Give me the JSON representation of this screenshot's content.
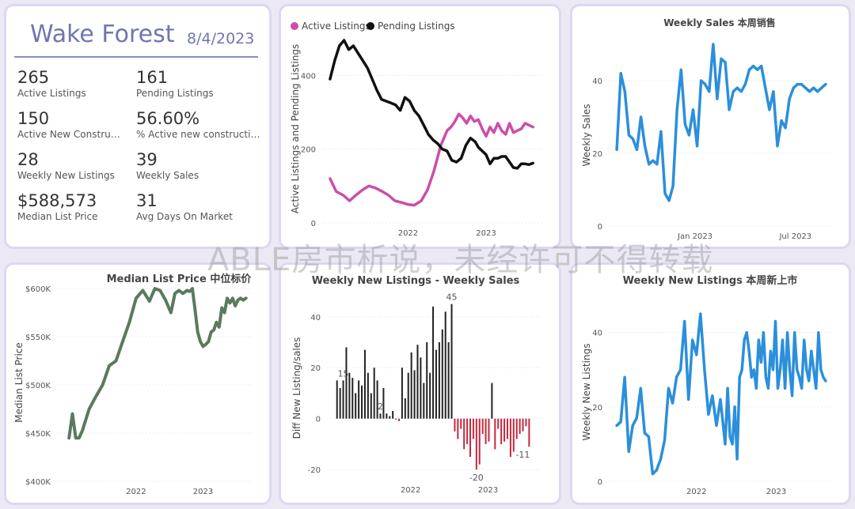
{
  "summary": {
    "title": "Wake Forest",
    "date": "8/4/2023",
    "kpis": [
      {
        "value": "265",
        "label": "Active Listings"
      },
      {
        "value": "161",
        "label": "Pending Listings"
      },
      {
        "value": "150",
        "label": "Active New Constructi..."
      },
      {
        "value": "56.60%",
        "label": "% Active new constructions"
      },
      {
        "value": "28",
        "label": "Weekly New Listings"
      },
      {
        "value": "39",
        "label": "Weekly Sales"
      },
      {
        "value": "$588,573",
        "label": "Median List Price"
      },
      {
        "value": "31",
        "label": "Avg Days On Market"
      }
    ]
  },
  "watermark": "ABLE房市析说，未经许可不得转载",
  "colors": {
    "active": "#cc4ea8",
    "pending": "#111111",
    "sales": "#2b8fdb",
    "price": "#5a7a5c",
    "pos": "#222222",
    "neg": "#c8283e"
  },
  "chart_data": [
    {
      "type": "line",
      "title": "",
      "ylabel": "Active Listings and Pending Listings",
      "ylim": [
        0,
        510
      ],
      "yticks": [
        "0",
        "200",
        "400"
      ],
      "xticks": [
        {
          "t": 2022.0,
          "label": "2022"
        },
        {
          "t": 2023.0,
          "label": "2023"
        }
      ],
      "legend": "top-left",
      "series": [
        {
          "name": "Active Listings",
          "color": "#cc4ea8",
          "x": [
            2021.0,
            2021.08,
            2021.17,
            2021.25,
            2021.33,
            2021.42,
            2021.5,
            2021.58,
            2021.67,
            2021.75,
            2021.83,
            2021.92,
            2022.0,
            2022.08,
            2022.17,
            2022.25,
            2022.33,
            2022.42,
            2022.5,
            2022.55,
            2022.6,
            2022.65,
            2022.7,
            2022.75,
            2022.8,
            2022.85,
            2022.9,
            2022.95,
            2023.0,
            2023.05,
            2023.1,
            2023.15,
            2023.2,
            2023.25,
            2023.3,
            2023.35,
            2023.4,
            2023.45,
            2023.5,
            2023.55,
            2023.6
          ],
          "y": [
            120,
            85,
            75,
            60,
            75,
            90,
            100,
            95,
            85,
            75,
            60,
            55,
            50,
            48,
            60,
            90,
            140,
            210,
            250,
            260,
            275,
            295,
            285,
            270,
            290,
            275,
            280,
            255,
            235,
            260,
            245,
            270,
            250,
            240,
            270,
            245,
            250,
            255,
            270,
            265,
            260
          ]
        },
        {
          "name": "Pending Listings",
          "color": "#111111",
          "x": [
            2021.0,
            2021.06,
            2021.12,
            2021.18,
            2021.24,
            2021.3,
            2021.36,
            2021.42,
            2021.48,
            2021.54,
            2021.6,
            2021.66,
            2021.72,
            2021.78,
            2021.84,
            2021.9,
            2021.96,
            2022.02,
            2022.08,
            2022.14,
            2022.2,
            2022.26,
            2022.32,
            2022.38,
            2022.44,
            2022.5,
            2022.56,
            2022.62,
            2022.68,
            2022.74,
            2022.8,
            2022.86,
            2022.9,
            2022.95,
            2023.0,
            2023.05,
            2023.1,
            2023.15,
            2023.2,
            2023.25,
            2023.3,
            2023.35,
            2023.4,
            2023.45,
            2023.5,
            2023.55,
            2023.6
          ],
          "y": [
            390,
            440,
            480,
            495,
            470,
            480,
            460,
            440,
            420,
            390,
            360,
            335,
            330,
            325,
            320,
            305,
            340,
            330,
            305,
            290,
            265,
            240,
            225,
            215,
            200,
            195,
            170,
            165,
            175,
            210,
            230,
            220,
            205,
            195,
            185,
            160,
            175,
            175,
            180,
            180,
            165,
            150,
            148,
            160,
            160,
            158,
            162
          ]
        }
      ]
    },
    {
      "type": "line",
      "title": "Weekly Sales 本周销售",
      "ylabel": "Weekly Sales",
      "ylim": [
        0,
        50
      ],
      "yticks": [
        "0",
        "20",
        "40"
      ],
      "xticks": [
        {
          "t": 2023.0,
          "label": "Jan 2023"
        },
        {
          "t": 2023.5,
          "label": "Jul 2023"
        }
      ],
      "series": [
        {
          "name": "Weekly Sales",
          "color": "#2b8fdb",
          "x": [
            2022.61,
            2022.63,
            2022.65,
            2022.67,
            2022.69,
            2022.71,
            2022.73,
            2022.75,
            2022.77,
            2022.79,
            2022.81,
            2022.83,
            2022.85,
            2022.87,
            2022.89,
            2022.91,
            2022.93,
            2022.95,
            2022.97,
            2022.99,
            2023.01,
            2023.03,
            2023.05,
            2023.07,
            2023.09,
            2023.11,
            2023.13,
            2023.15,
            2023.17,
            2023.19,
            2023.21,
            2023.23,
            2023.25,
            2023.27,
            2023.29,
            2023.31,
            2023.33,
            2023.35,
            2023.37,
            2023.39,
            2023.41,
            2023.43,
            2023.45,
            2023.47,
            2023.49,
            2023.51,
            2023.53,
            2023.55,
            2023.57,
            2023.59,
            2023.61,
            2023.63,
            2023.65
          ],
          "y": [
            21,
            42,
            37,
            25,
            24,
            21,
            30,
            22,
            17,
            18,
            17,
            26,
            9,
            7,
            11,
            32,
            43,
            28,
            25,
            32,
            22,
            40,
            39,
            37,
            50,
            35,
            46,
            45,
            32,
            37,
            38,
            37,
            39,
            43,
            44,
            43,
            44,
            38,
            32,
            37,
            22,
            29,
            27,
            35,
            38,
            39,
            39,
            38,
            37,
            38,
            37,
            38,
            39
          ]
        }
      ]
    },
    {
      "type": "line",
      "title": "Median List Price  中位标价",
      "ylabel": "Median List Price",
      "ylim": [
        400000,
        605000
      ],
      "yticks": [
        "$400K",
        "$450K",
        "$500K",
        "$550K",
        "$600K"
      ],
      "xticks": [
        {
          "t": 2022.0,
          "label": "2022"
        },
        {
          "t": 2023.0,
          "label": "2023"
        }
      ],
      "series": [
        {
          "name": "Median List Price",
          "color": "#5a7a5c",
          "x": [
            2021.0,
            2021.05,
            2021.1,
            2021.15,
            2021.2,
            2021.3,
            2021.4,
            2021.5,
            2021.6,
            2021.7,
            2021.8,
            2021.9,
            2022.0,
            2022.1,
            2022.2,
            2022.28,
            2022.36,
            2022.44,
            2022.52,
            2022.58,
            2022.64,
            2022.7,
            2022.76,
            2022.8,
            2022.84,
            2022.88,
            2022.92,
            2022.96,
            2023.0,
            2023.04,
            2023.08,
            2023.12,
            2023.16,
            2023.2,
            2023.24,
            2023.28,
            2023.32,
            2023.36,
            2023.4,
            2023.44,
            2023.48,
            2023.52,
            2023.56,
            2023.6,
            2023.64
          ],
          "y": [
            445000,
            470000,
            445000,
            445000,
            453000,
            475000,
            488000,
            500000,
            520000,
            525000,
            545000,
            565000,
            590000,
            598000,
            587000,
            600000,
            598000,
            588000,
            575000,
            595000,
            598000,
            595000,
            598000,
            597000,
            600000,
            578000,
            555000,
            545000,
            540000,
            542000,
            545000,
            555000,
            557000,
            565000,
            560000,
            580000,
            575000,
            590000,
            585000,
            590000,
            582000,
            588000,
            590000,
            588000,
            590000
          ]
        }
      ]
    },
    {
      "type": "bar",
      "title": "Weekly New Listings - Weekly Sales",
      "ylabel": "Diff New Listing/sales",
      "ylim": [
        -24,
        48
      ],
      "yticks": [
        "-20",
        "0",
        "20",
        "40"
      ],
      "xticks": [
        {
          "t": 2022.0,
          "label": "2022"
        },
        {
          "t": 2023.0,
          "label": "2023"
        }
      ],
      "annotations": [
        {
          "i": 2,
          "label": "15"
        },
        {
          "i": 14,
          "label": "2"
        },
        {
          "i": 37,
          "label": "45"
        },
        {
          "i": 45,
          "label": "-20"
        },
        {
          "i": 62,
          "label": "-11"
        }
      ],
      "x_start": 2021.05,
      "x_step": 0.04,
      "values": [
        15,
        12,
        15,
        28,
        18,
        16,
        10,
        15,
        13,
        27,
        18,
        10,
        20,
        15,
        2,
        12,
        2,
        1,
        3,
        0,
        -1,
        20,
        8,
        18,
        26,
        19,
        29,
        24,
        14,
        30,
        18,
        44,
        27,
        30,
        35,
        42,
        30,
        45,
        -5,
        -8,
        -4,
        -12,
        -10,
        -15,
        -8,
        -20,
        -18,
        -6,
        -10,
        -9,
        14,
        -12,
        -4,
        -10,
        -9,
        -8,
        -15,
        -13,
        -8,
        -6,
        -5,
        -3,
        -11
      ]
    },
    {
      "type": "line",
      "title": "Weekly New Listings  本周新上市",
      "ylabel": "Weekly New Listings",
      "ylim": [
        0,
        48
      ],
      "yticks": [
        "0",
        "20",
        "40"
      ],
      "xticks": [
        {
          "t": 2022.0,
          "label": "2022"
        },
        {
          "t": 2023.0,
          "label": "2023"
        }
      ],
      "series": [
        {
          "name": "Weekly New Listings",
          "color": "#2b8fdb",
          "x": [
            2021.0,
            2021.05,
            2021.1,
            2021.15,
            2021.2,
            2021.25,
            2021.3,
            2021.35,
            2021.4,
            2021.45,
            2021.5,
            2021.55,
            2021.6,
            2021.65,
            2021.7,
            2021.75,
            2021.8,
            2021.85,
            2021.9,
            2021.95,
            2022.0,
            2022.05,
            2022.1,
            2022.15,
            2022.2,
            2022.25,
            2022.3,
            2022.33,
            2022.36,
            2022.39,
            2022.42,
            2022.45,
            2022.48,
            2022.51,
            2022.54,
            2022.57,
            2022.6,
            2022.63,
            2022.66,
            2022.69,
            2022.72,
            2022.75,
            2022.78,
            2022.81,
            2022.84,
            2022.87,
            2022.9,
            2022.93,
            2022.96,
            2022.99,
            2023.02,
            2023.05,
            2023.08,
            2023.11,
            2023.14,
            2023.17,
            2023.2,
            2023.23,
            2023.26,
            2023.29,
            2023.32,
            2023.35,
            2023.38,
            2023.41,
            2023.44,
            2023.47,
            2023.5,
            2023.53,
            2023.56,
            2023.59,
            2023.62
          ],
          "y": [
            15,
            16,
            28,
            8,
            15,
            17,
            25,
            13,
            12,
            2,
            3,
            6,
            11,
            25,
            21,
            28,
            30,
            43,
            22,
            38,
            34,
            45,
            30,
            18,
            23,
            15,
            22,
            16,
            10,
            25,
            12,
            10,
            20,
            6,
            28,
            30,
            38,
            40,
            35,
            28,
            30,
            25,
            38,
            32,
            40,
            28,
            25,
            35,
            30,
            43,
            25,
            30,
            38,
            25,
            40,
            30,
            23,
            40,
            30,
            28,
            25,
            38,
            30,
            27,
            35,
            30,
            25,
            40,
            30,
            28,
            27
          ]
        }
      ]
    }
  ]
}
